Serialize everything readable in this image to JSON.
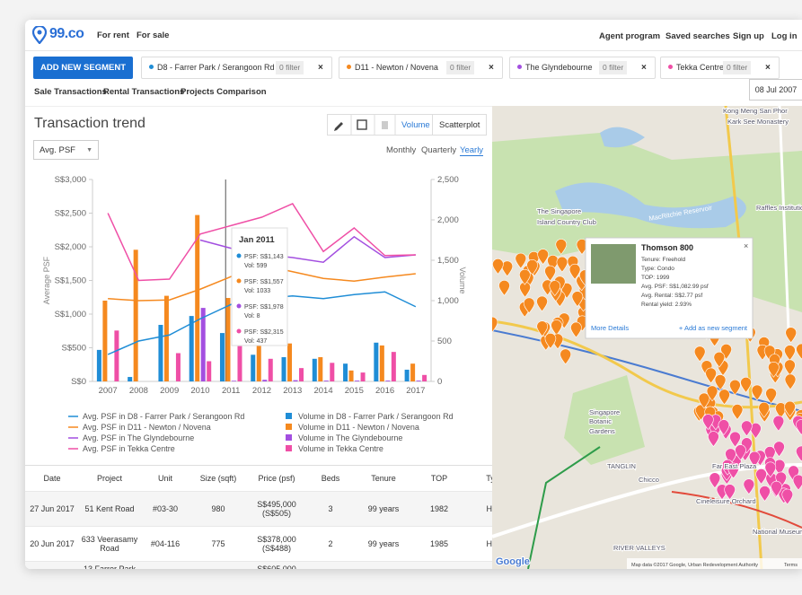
{
  "header": {
    "logo": "99.co",
    "nav_left": [
      "For rent",
      "For sale"
    ],
    "nav_right": [
      "Agent program",
      "Saved searches",
      "Sign up",
      "Log in"
    ]
  },
  "segments": {
    "add_button": "ADD NEW SEGMENT",
    "items": [
      {
        "name": "D8 - Farrer Park / Serangoon Rd",
        "filter": "0 filter",
        "color": "#1f8dd6"
      },
      {
        "name": "D11 - Newton / Novena",
        "filter": "0 filter",
        "color": "#f5891f"
      },
      {
        "name": "The Glyndebourne",
        "filter": "0 filter",
        "color": "#a34fe0"
      },
      {
        "name": "Tekka Centre",
        "filter": "0 filter",
        "color": "#ef4fa6"
      }
    ]
  },
  "tabs": [
    "Sale Transactions",
    "Rental Transactions",
    "Projects Comparison"
  ],
  "date": "08 Jul 2007",
  "trend": {
    "title": "Transaction trend",
    "metric": "Avg. PSF",
    "view_toggle": [
      "Volume",
      "Scatterplot"
    ],
    "periods": [
      "Monthly",
      "Quarterly",
      "Yearly"
    ],
    "chart": {
      "type": "bar",
      "y_label": "Average PSF",
      "y2_label": "Volume",
      "categories": [
        "2007",
        "2008",
        "2009",
        "2010",
        "2011",
        "2012",
        "2013",
        "2014",
        "2015",
        "2016",
        "2017"
      ],
      "ylim": [
        0,
        3000
      ],
      "yticks": [
        {
          "value": 0,
          "label": "S$0"
        },
        {
          "value": 500,
          "label": "S$500"
        },
        {
          "value": 1000,
          "label": "S$1,000"
        },
        {
          "value": 1500,
          "label": "S$1,500"
        },
        {
          "value": 2000,
          "label": "S$2,000"
        },
        {
          "value": 2500,
          "label": "S$2,500"
        },
        {
          "value": 3000,
          "label": "S$3,000"
        }
      ],
      "y2lim": [
        0,
        2500
      ],
      "y2ticks": [
        0,
        500,
        {
          "value": 1000,
          "label": "1,000"
        },
        {
          "value": 1500,
          "label": "1,500"
        },
        {
          "value": 2000,
          "label": "2,000"
        },
        {
          "value": 2500,
          "label": "2,500"
        }
      ],
      "series": [
        {
          "name": "Avg. PSF in D8 - Farrer Park / Serangoon Rd",
          "type": "line",
          "axis": "y",
          "color": "#1f8dd6",
          "values": [
            400,
            600,
            690,
            930,
            1143,
            1230,
            1270,
            1230,
            1290,
            1330,
            1110
          ]
        },
        {
          "name": "Avg. PSF in D11 - Newton / Novena",
          "type": "line",
          "axis": "y",
          "color": "#f5891f",
          "values": [
            1230,
            1200,
            1210,
            1370,
            1557,
            1730,
            1630,
            1530,
            1490,
            1550,
            1600
          ]
        },
        {
          "name": "Avg. PSF in The Glyndebourne",
          "type": "line",
          "axis": "y",
          "color": "#a34fe0",
          "values": [
            null,
            null,
            null,
            2100,
            1978,
            1890,
            1840,
            1770,
            2150,
            1840,
            1880
          ]
        },
        {
          "name": "Avg. PSF in Tekka Centre",
          "type": "line",
          "axis": "y",
          "color": "#ef4fa6",
          "values": [
            2500,
            1500,
            1520,
            2190,
            2315,
            2440,
            2640,
            1930,
            2280,
            1870,
            1880
          ]
        },
        {
          "name": "Volume in D8 - Farrer Park / Serangoon Rd",
          "type": "bar",
          "axis": "y2",
          "color": "#1f8dd6",
          "values": [
            390,
            55,
            700,
            810,
            599,
            330,
            300,
            280,
            220,
            480,
            145
          ]
        },
        {
          "name": "Volume in D11 - Newton / Novena",
          "type": "bar",
          "axis": "y2",
          "color": "#f5891f",
          "values": [
            1000,
            1630,
            1060,
            2060,
            1033,
            555,
            470,
            300,
            135,
            445,
            220
          ]
        },
        {
          "name": "Volume in The Glyndebourne",
          "type": "bar",
          "axis": "y2",
          "color": "#a34fe0",
          "values": [
            null,
            null,
            null,
            910,
            8,
            20,
            15,
            10,
            10,
            10,
            10
          ]
        },
        {
          "name": "Volume in Tekka Centre",
          "type": "bar",
          "axis": "y2",
          "color": "#ef4fa6",
          "values": [
            630,
            null,
            350,
            250,
            437,
            280,
            165,
            230,
            110,
            365,
            80
          ]
        }
      ],
      "tooltip": {
        "title": "Jan 2011",
        "items": [
          {
            "psf": "PSF: S$1,143",
            "vol": "Vol: 599"
          },
          {
            "psf": "PSF: S$1,557",
            "vol": "Vol: 1033"
          },
          {
            "psf": "PSF: S$1,978",
            "vol": "Vol: 8"
          },
          {
            "psf": "PSF: S$2,315",
            "vol": "Vol: 437"
          }
        ]
      }
    }
  },
  "table": {
    "columns": [
      "Date",
      "Project",
      "Unit",
      "Size (sqft)",
      "Price (psf)",
      "Beds",
      "Tenure",
      "TOP",
      "Type"
    ],
    "rows": [
      [
        "27 Jun 2017",
        "51 Kent Road",
        "#03-30",
        "980",
        "S$495,000 (S$505)",
        "3",
        "99 years",
        "1982",
        "HDB"
      ],
      [
        "20 Jun 2017",
        "633 Veerasamy Road",
        "#04-116",
        "775",
        "S$378,000 (S$488)",
        "2",
        "99 years",
        "1985",
        "HDB"
      ]
    ],
    "partial_row": {
      "project": "13 Farrer Park",
      "price": "S$605,000"
    }
  },
  "map": {
    "popup": {
      "title": "Thomson 800",
      "lines": [
        "Tenure: Freehold",
        "Type: Condo",
        "TOP: 1999",
        "Avg. PSF: S$1,082.99 psf",
        "Avg. Rental: S$2.77 psf",
        "Rental yield: 2.93%"
      ],
      "more": "More Details",
      "add": "+ Add as new segment"
    },
    "labels": [
      "Kong Meng San Phor",
      "Kark See Monastery",
      "MacRitchie Reservoir",
      "The Singapore",
      "Island Country Club",
      "Raffles Institution",
      "Singapore",
      "Botanic",
      "Gardens",
      "TANGLIN",
      "Far East Plaza",
      "Chicco",
      "Cineleisure Orchard",
      "RIVER VALLEYS",
      "National Museum"
    ],
    "brand": "Google",
    "attribution": "Map data ©2017 Google, Urban Redevelopment Authority",
    "terms": "Terms"
  }
}
